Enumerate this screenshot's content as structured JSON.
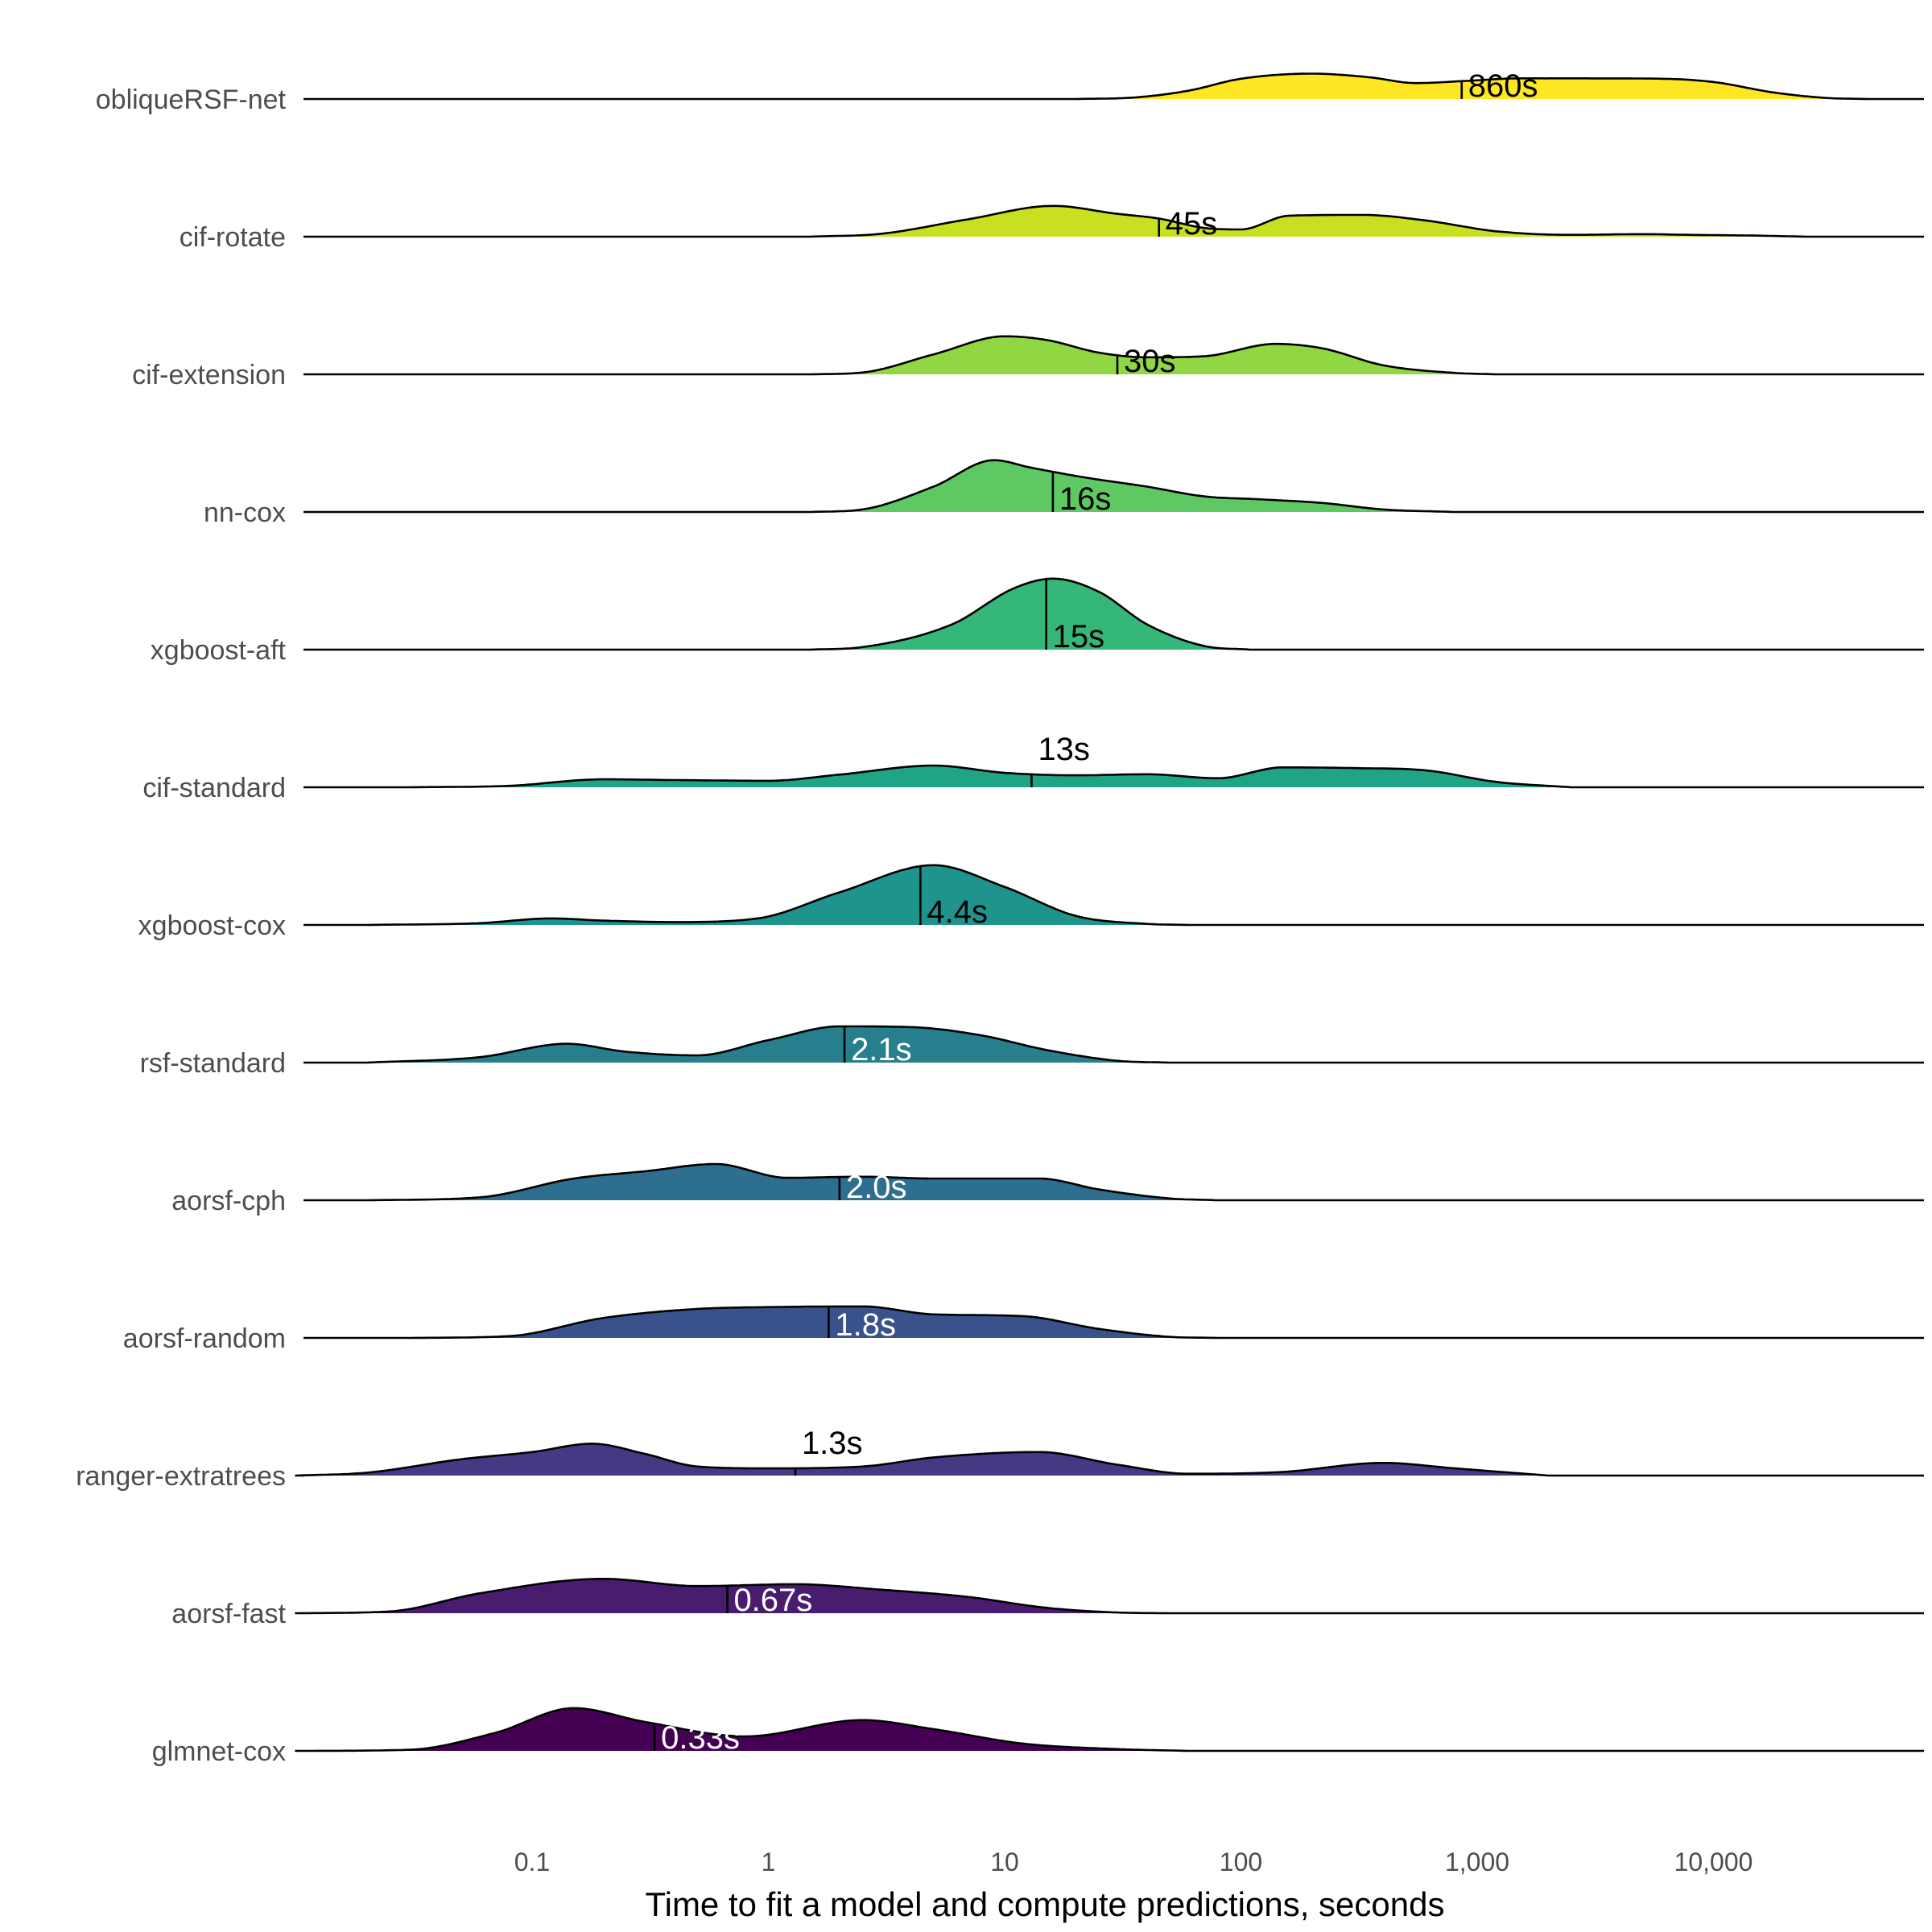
{
  "chart_data": {
    "type": "ridgeline",
    "xlabel": "Time to fit a model and compute predictions, seconds",
    "ylabel": "",
    "x_scale": "log10",
    "xlim": [
      0.01,
      70000
    ],
    "x_ticks": [
      0.1,
      1,
      10,
      100,
      1000,
      10000
    ],
    "x_tick_labels": [
      "0.1",
      "1",
      "10",
      "100",
      "1,000",
      "10,000"
    ],
    "grid": false,
    "legend": "none",
    "series": [
      {
        "name": "obliqueRSF-net",
        "color": "#FDE725",
        "median": 860,
        "median_label": "860s",
        "label_color": "#000000",
        "label_pos": "below",
        "density": [
          [
            20,
            0
          ],
          [
            35,
            0.04
          ],
          [
            60,
            0.23
          ],
          [
            100,
            0.56
          ],
          [
            200,
            0.7
          ],
          [
            350,
            0.6
          ],
          [
            550,
            0.44
          ],
          [
            900,
            0.5
          ],
          [
            1500,
            0.57
          ],
          [
            3000,
            0.57
          ],
          [
            6000,
            0.56
          ],
          [
            10000,
            0.47
          ],
          [
            18000,
            0.18
          ],
          [
            30000,
            0.03
          ],
          [
            45000,
            0
          ]
        ]
      },
      {
        "name": "cif-rotate",
        "color": "#C8E020",
        "median": 45,
        "median_label": "45s",
        "label_color": "#000000",
        "label_pos": "below",
        "density": [
          [
            1.5,
            0
          ],
          [
            3,
            0.08
          ],
          [
            7,
            0.48
          ],
          [
            16,
            0.85
          ],
          [
            30,
            0.63
          ],
          [
            45,
            0.5
          ],
          [
            70,
            0.24
          ],
          [
            100,
            0.2
          ],
          [
            160,
            0.58
          ],
          [
            330,
            0.6
          ],
          [
            600,
            0.45
          ],
          [
            1200,
            0.15
          ],
          [
            2500,
            0.05
          ],
          [
            5000,
            0.07
          ],
          [
            8000,
            0.05
          ],
          [
            15000,
            0.03
          ],
          [
            25000,
            0
          ]
        ]
      },
      {
        "name": "cif-extension",
        "color": "#90D743",
        "median": 30,
        "median_label": "30s",
        "label_color": "#000000",
        "label_pos": "below",
        "density": [
          [
            1.5,
            0
          ],
          [
            2.5,
            0.05
          ],
          [
            5,
            0.55
          ],
          [
            10,
            1.05
          ],
          [
            15,
            0.95
          ],
          [
            25,
            0.6
          ],
          [
            40,
            0.47
          ],
          [
            70,
            0.5
          ],
          [
            140,
            0.84
          ],
          [
            220,
            0.72
          ],
          [
            400,
            0.25
          ],
          [
            800,
            0.04
          ],
          [
            1200,
            0
          ]
        ]
      },
      {
        "name": "nn-cox",
        "color": "#5EC962",
        "median": 16,
        "median_label": "16s",
        "label_color": "#000000",
        "label_pos": "below",
        "density": [
          [
            1.5,
            0
          ],
          [
            2.5,
            0.07
          ],
          [
            5,
            0.7
          ],
          [
            9,
            1.43
          ],
          [
            13,
            1.22
          ],
          [
            22,
            0.95
          ],
          [
            40,
            0.7
          ],
          [
            70,
            0.43
          ],
          [
            120,
            0.35
          ],
          [
            220,
            0.25
          ],
          [
            400,
            0.07
          ],
          [
            800,
            0
          ]
        ]
      },
      {
        "name": "xgboost-aft",
        "color": "#35B779",
        "median": 15,
        "median_label": "15s",
        "label_color": "#000000",
        "label_pos": "below",
        "density": [
          [
            1.5,
            0
          ],
          [
            2.5,
            0.07
          ],
          [
            6,
            0.7
          ],
          [
            11,
            1.7
          ],
          [
            16,
            1.96
          ],
          [
            25,
            1.6
          ],
          [
            40,
            0.7
          ],
          [
            70,
            0.1
          ],
          [
            110,
            0
          ]
        ]
      },
      {
        "name": "cif-standard",
        "color": "#20A486",
        "median": 13,
        "median_label": "13s",
        "label_color": "#000000",
        "label_pos": "above",
        "density": [
          [
            0.03,
            0
          ],
          [
            0.08,
            0.04
          ],
          [
            0.2,
            0.22
          ],
          [
            0.4,
            0.2
          ],
          [
            1,
            0.18
          ],
          [
            2,
            0.35
          ],
          [
            5,
            0.6
          ],
          [
            10,
            0.4
          ],
          [
            20,
            0.33
          ],
          [
            40,
            0.36
          ],
          [
            80,
            0.25
          ],
          [
            150,
            0.55
          ],
          [
            300,
            0.53
          ],
          [
            600,
            0.47
          ],
          [
            1200,
            0.15
          ],
          [
            2500,
            0
          ]
        ]
      },
      {
        "name": "xgboost-cox",
        "color": "#1F948C",
        "median": 4.4,
        "median_label": "4.4s",
        "label_color": "#000000",
        "label_pos": "below",
        "density": [
          [
            0.02,
            0
          ],
          [
            0.06,
            0.05
          ],
          [
            0.12,
            0.18
          ],
          [
            0.2,
            0.12
          ],
          [
            0.4,
            0.08
          ],
          [
            0.9,
            0.18
          ],
          [
            2,
            0.9
          ],
          [
            5,
            1.65
          ],
          [
            10,
            1.05
          ],
          [
            20,
            0.25
          ],
          [
            40,
            0.03
          ],
          [
            60,
            0
          ]
        ]
      },
      {
        "name": "rsf-standard",
        "color": "#277F8E",
        "median": 2.1,
        "median_label": "2.1s",
        "label_color": "#FFFFFF",
        "label_pos": "below",
        "density": [
          [
            0.02,
            0
          ],
          [
            0.06,
            0.15
          ],
          [
            0.14,
            0.52
          ],
          [
            0.25,
            0.3
          ],
          [
            0.5,
            0.2
          ],
          [
            1,
            0.62
          ],
          [
            2,
            1.0
          ],
          [
            4,
            0.98
          ],
          [
            8,
            0.75
          ],
          [
            15,
            0.35
          ],
          [
            30,
            0.05
          ],
          [
            50,
            0
          ]
        ]
      },
      {
        "name": "aorsf-cph",
        "color": "#2E6E8E",
        "median": 2.0,
        "median_label": "2.0s",
        "label_color": "#FFFFFF",
        "label_pos": "below",
        "density": [
          [
            0.02,
            0
          ],
          [
            0.06,
            0.08
          ],
          [
            0.15,
            0.6
          ],
          [
            0.3,
            0.8
          ],
          [
            0.6,
            1.0
          ],
          [
            1.2,
            0.62
          ],
          [
            2.5,
            0.65
          ],
          [
            5,
            0.6
          ],
          [
            14,
            0.6
          ],
          [
            25,
            0.3
          ],
          [
            50,
            0.05
          ],
          [
            80,
            0
          ]
        ]
      },
      {
        "name": "aorsf-random",
        "color": "#3A528B",
        "median": 1.8,
        "median_label": "1.8s",
        "label_color": "#FFFFFF",
        "label_pos": "below",
        "density": [
          [
            0.03,
            0
          ],
          [
            0.08,
            0.05
          ],
          [
            0.2,
            0.55
          ],
          [
            0.5,
            0.8
          ],
          [
            1,
            0.85
          ],
          [
            2.5,
            0.87
          ],
          [
            5,
            0.65
          ],
          [
            12,
            0.6
          ],
          [
            25,
            0.25
          ],
          [
            50,
            0.03
          ],
          [
            80,
            0
          ]
        ]
      },
      {
        "name": "ranger-extratrees",
        "color": "#443A83",
        "median": 1.3,
        "median_label": "1.3s",
        "label_color": "#000000",
        "label_pos": "above",
        "density": [
          [
            0.01,
            0
          ],
          [
            0.02,
            0.08
          ],
          [
            0.05,
            0.45
          ],
          [
            0.1,
            0.65
          ],
          [
            0.18,
            0.88
          ],
          [
            0.3,
            0.6
          ],
          [
            0.5,
            0.25
          ],
          [
            1,
            0.2
          ],
          [
            2.5,
            0.25
          ],
          [
            5,
            0.5
          ],
          [
            14,
            0.65
          ],
          [
            30,
            0.3
          ],
          [
            60,
            0.05
          ],
          [
            150,
            0.1
          ],
          [
            400,
            0.35
          ],
          [
            800,
            0.2
          ],
          [
            2000,
            0
          ]
        ]
      },
      {
        "name": "aorsf-fast",
        "color": "#481C6E",
        "median": 0.67,
        "median_label": "0.67s",
        "label_color": "#FFFFFF",
        "label_pos": "below",
        "density": [
          [
            0.01,
            0
          ],
          [
            0.025,
            0.05
          ],
          [
            0.06,
            0.55
          ],
          [
            0.2,
            0.95
          ],
          [
            0.5,
            0.75
          ],
          [
            1.3,
            0.8
          ],
          [
            3,
            0.65
          ],
          [
            7,
            0.45
          ],
          [
            15,
            0.15
          ],
          [
            30,
            0.02
          ],
          [
            50,
            0
          ]
        ]
      },
      {
        "name": "glmnet-cox",
        "color": "#440154",
        "median": 0.33,
        "median_label": "0.33s",
        "label_color": "#FFFFFF",
        "label_pos": "below",
        "density": [
          [
            0.01,
            0
          ],
          [
            0.03,
            0.03
          ],
          [
            0.07,
            0.5
          ],
          [
            0.15,
            1.18
          ],
          [
            0.3,
            0.8
          ],
          [
            0.8,
            0.4
          ],
          [
            2.5,
            0.85
          ],
          [
            5,
            0.6
          ],
          [
            12,
            0.2
          ],
          [
            30,
            0.05
          ],
          [
            60,
            0
          ]
        ]
      }
    ]
  }
}
